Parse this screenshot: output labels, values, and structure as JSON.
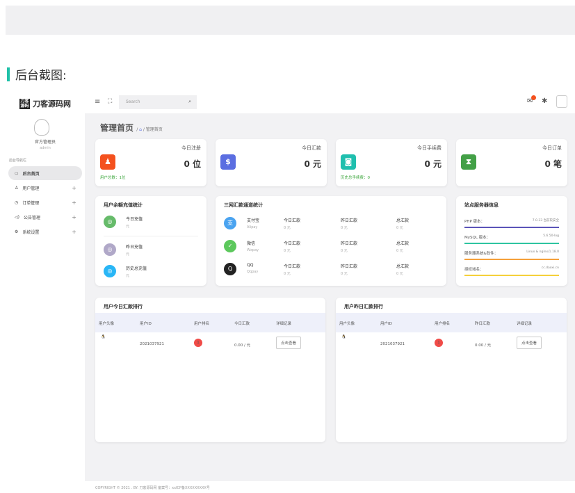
{
  "heading": "后台截图:",
  "app": {
    "logo": "刀客源码网",
    "logo_mark": "刀客源码",
    "user_name": "官方管理员",
    "user_id": "admin",
    "search_placeholder": "Search"
  },
  "sidebar": {
    "section_label": "后台导航栏",
    "items": [
      {
        "label": "后台首页",
        "icon": "monitor-icon",
        "active": true
      },
      {
        "label": "用户管理",
        "icon": "user-icon"
      },
      {
        "label": "订单管理",
        "icon": "clock-icon"
      },
      {
        "label": "公告管理",
        "icon": "speaker-icon"
      },
      {
        "label": "系统设置",
        "icon": "gear-icon"
      }
    ]
  },
  "breadcrumb": {
    "title": "管理首页",
    "current": "管理首页"
  },
  "stats": [
    {
      "label": "今日注册",
      "value": "0 位",
      "color": "#f4511e",
      "icon": "user-icon",
      "footer": "用户总数：1位"
    },
    {
      "label": "今日汇款",
      "value": "0 元",
      "color": "#5b6ee1",
      "icon": "dollar-icon",
      "footer": ""
    },
    {
      "label": "今日手续费",
      "value": "0 元",
      "color": "#1fbfae",
      "icon": "money-bag-icon",
      "footer": "历史总手续费：0"
    },
    {
      "label": "今日订单",
      "value": "0 笔",
      "color": "#43a047",
      "icon": "hourglass-icon",
      "footer": ""
    }
  ],
  "balance": {
    "title": "用户余额充值统计",
    "items": [
      {
        "label": "今日充值",
        "value": "元",
        "color": "#66bb6a"
      },
      {
        "label": "昨日充值",
        "value": "元",
        "color": "#b0a8c8"
      },
      {
        "label": "历史总充值",
        "value": "元",
        "color": "#29b6f6"
      }
    ]
  },
  "channels": {
    "title": "三网汇款通道统计",
    "rows": [
      {
        "name": "支付宝",
        "sub": "Alipay",
        "color": "#4aa3f0",
        "icon": "alipay-icon",
        "today": "今日汇款",
        "today_v": "0 元",
        "yest": "昨日汇款",
        "yest_v": "0 元",
        "total": "总汇款",
        "total_v": "0 元"
      },
      {
        "name": "微信",
        "sub": "Wxpay",
        "color": "#5cc85c",
        "icon": "wechat-icon",
        "today": "今日汇款",
        "today_v": "0 元",
        "yest": "昨日汇款",
        "yest_v": "0 元",
        "total": "总汇款",
        "total_v": "0 元"
      },
      {
        "name": "QQ",
        "sub": "Qqpay",
        "color": "#222",
        "icon": "qq-icon",
        "today": "今日汇款",
        "today_v": "0 元",
        "yest": "昨日汇款",
        "yest_v": "0 元",
        "total": "总汇款",
        "total_v": "0 元"
      }
    ]
  },
  "server": {
    "title": "站点服务器信息",
    "items": [
      {
        "label": "PHP 版本：",
        "value": "7.0.33 当前较安全",
        "color": "#5b54b8"
      },
      {
        "label": "MySQL 版本：",
        "value": "5.6.50-log",
        "color": "#2ec4a0"
      },
      {
        "label": "服务器系统&软件：",
        "value": "Linux & nginx/1.18.0",
        "color": "#f5a03a"
      },
      {
        "label": "授权域名：",
        "value": "cc.daoxi.cn",
        "color": "#f5d03a"
      }
    ]
  },
  "rank_today": {
    "title": "用户今日汇款排行",
    "headers": [
      "用户头像",
      "用户ID",
      "用户排名",
      "今日汇款",
      "详细记录"
    ],
    "rows": [
      {
        "id": "2021037921",
        "rank": "1",
        "amount": "0.00 / 元",
        "button": "点击查看"
      }
    ]
  },
  "rank_yesterday": {
    "title": "用户昨日汇款排行",
    "headers": [
      "用户头像",
      "用户ID",
      "用户排名",
      "昨日汇款",
      "详细记录"
    ],
    "rows": [
      {
        "id": "2021037921",
        "rank": "1",
        "amount": "0.00 / 元",
        "button": "点击查看"
      }
    ]
  },
  "footer": "COPYRIGHT © 2021 . BY: 刀客源码网   备案号：xxICP备XXXXXXXXX号"
}
